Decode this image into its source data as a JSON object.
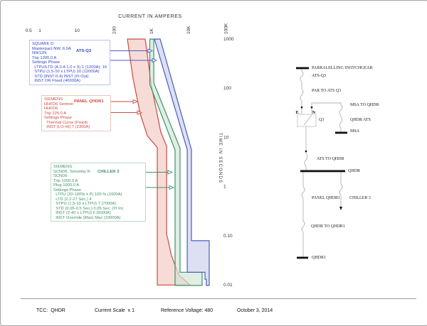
{
  "page": {
    "title": "CURRENT IN AMPERES"
  },
  "chart_data": {
    "type": "line",
    "title": "CURRENT IN AMPERES",
    "xlabel": "CURRENT IN AMPERES",
    "ylabel": "TIME IN SECONDS",
    "x_scale": "log",
    "y_scale": "log",
    "xlim": [
      0.5,
      100000
    ],
    "ylim": [
      0.01,
      1000
    ],
    "grid": false,
    "x_ticks": [
      {
        "label": "0.5",
        "value": 0.5,
        "rotated": false
      },
      {
        "label": "1",
        "value": 1,
        "rotated": false
      },
      {
        "label": "10",
        "value": 10,
        "rotated": false
      },
      {
        "label": "100",
        "value": 100,
        "rotated": true
      },
      {
        "label": "1K",
        "value": 1000,
        "rotated": true
      },
      {
        "label": "10K",
        "value": 10000,
        "rotated": true
      },
      {
        "label": "100K",
        "value": 100000,
        "rotated": true
      }
    ],
    "y_ticks": [
      {
        "label": "1000",
        "value": 1000
      },
      {
        "label": "100",
        "value": 100
      },
      {
        "label": "10",
        "value": 10
      },
      {
        "label": "1",
        "value": 1
      },
      {
        "label": "0.10",
        "value": 0.1
      },
      {
        "label": "0.01",
        "value": 0.01
      }
    ],
    "series": [
      {
        "name": "PANEL QHDR1",
        "color": "#cc4a42",
        "fill": "#f3c7c2",
        "band_amps_seconds": [
          [
            225,
            1000
          ],
          [
            320,
            155
          ],
          [
            500,
            29.5
          ],
          [
            770,
            10.8
          ],
          [
            1430,
            6.2
          ],
          [
            1430,
            0.0099
          ],
          [
            10800,
            0.0099
          ],
          [
            5400,
            0.016
          ],
          [
            3400,
            0.04
          ],
          [
            2700,
            0.09
          ],
          [
            2540,
            0.105
          ],
          [
            2540,
            6.6
          ],
          [
            1780,
            12.7
          ],
          [
            1000,
            111
          ],
          [
            675,
            1000
          ]
        ]
      },
      {
        "name": "CHILLER 3",
        "color": "#3f9065",
        "fill": "#cfe7d6",
        "band_amps_seconds": [
          [
            900,
            1000
          ],
          [
            900,
            119
          ],
          [
            4300,
            5.5
          ],
          [
            4300,
            0.0097
          ],
          [
            22900,
            0.0097
          ],
          [
            22900,
            0.018
          ],
          [
            5850,
            0.018
          ],
          [
            5850,
            6.0
          ],
          [
            1150,
            128
          ],
          [
            1150,
            1000
          ]
        ]
      },
      {
        "name": "ATS-Q3",
        "color": "#4a5cc0",
        "fill": "#c9cfeb",
        "band_amps_seconds": [
          [
            1200,
            1000
          ],
          [
            1710,
            1000
          ],
          [
            11800,
            5.6
          ],
          [
            11800,
            0.079
          ],
          [
            35500,
            0.079
          ],
          [
            35500,
            0.0097
          ],
          [
            29700,
            0.0097
          ],
          [
            29700,
            0.013
          ],
          [
            27300,
            0.013
          ],
          [
            27300,
            0.018
          ],
          [
            9100,
            0.018
          ],
          [
            9100,
            5.6
          ]
        ]
      }
    ]
  },
  "devices": [
    {
      "id": "ats-q3",
      "ref_label": "ATS-Q3",
      "color": "#3347c1",
      "lines": [
        "SQUARE D",
        "Masterpact NW, 6.0A",
        "NW12N",
        "Trip 1200.0 A",
        "Settings Phase",
        "  LTPU/LTD (A 0.4-1.0 x S) 1 (1200A): 16",
        "  STPU (1.5-10 x LTPU) 10 (12000A)",
        "  STD (INST-0.4) INST (I²t Out)",
        "  INST OR Fixed (40000A)"
      ]
    },
    {
      "id": "panel-qhdr1",
      "ref_label": "PANEL QHDR1",
      "color": "#cc4a42",
      "lines": [
        "SIEMENS",
        "HHFD6 Sentron",
        "HHFD6",
        "Trip 225.0 A",
        "Settings Phase",
        "  Thermal Curve (Fixed)",
        "  INST (LO-HI) 7 (2300A)"
      ]
    },
    {
      "id": "chiller-3",
      "ref_label": "CHILLER 3",
      "color": "#3f9065",
      "lines": [
        "SIEMENS",
        "SCND6, Sensitrip III",
        "SCND6",
        "Trip 1200.0 A",
        "Plug 1000.0 A",
        "Settings Phase",
        "  LTPU (20-100% x P) 100 % (1000A)",
        "  LTD (2.2-27 Sec.) 4",
        "  STPU (1.5-10 x LTPU) 7 (7000A)",
        "  STD (0.05-0.5 Sec.) 0.05 Sec. (I²t In)",
        "  INST (2-40 x LTPU) 6 (6000A)",
        "  INST Override (Max) Max (10000A)"
      ]
    }
  ],
  "oneline": {
    "labels": [
      "PARRALELLING SWITCHGEAR",
      "ATS-Q3",
      "PAR TO ATS Q3",
      "MSA TO QHDR",
      "E",
      "N",
      "Q3",
      "QHDR ATS",
      "MSA",
      "ATS TO QHDR",
      "QHDR",
      "PANEL QHDR1",
      "CHILLER 3",
      "QHDR TO QHDR1",
      "QHDR1"
    ]
  },
  "footer": {
    "tcc": "TCC:  QHDR",
    "scale": "Current Scale  x 1",
    "voltage": "Reference Voltage: 480",
    "date": "October 3, 2014"
  }
}
